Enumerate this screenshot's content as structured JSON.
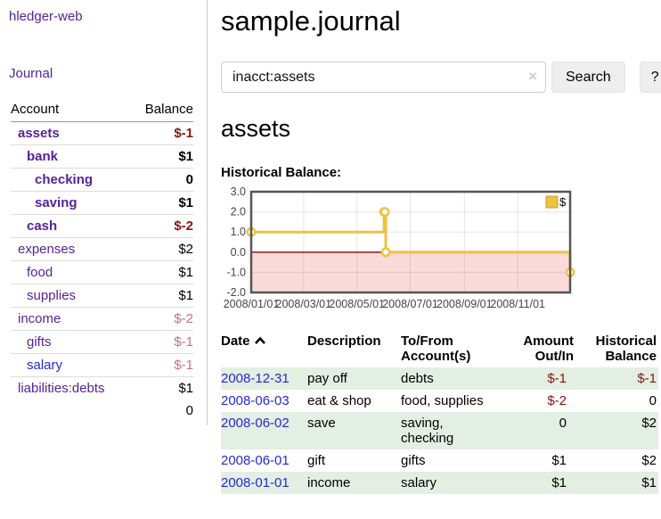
{
  "colors": {
    "link_purple": "#55229b",
    "link_blue": "#2828d4",
    "negative_strong": "#8a1515",
    "negative_soft": "#c4737d",
    "row_stripe_green": "#e2efe2",
    "chart_series_yellow": "#edc240",
    "chart_negative_region": "#fbdada",
    "chart_zero_line": "#8b0000"
  },
  "sidebar": {
    "app_title": "hledger-web",
    "journal_link": "Journal",
    "accounts_table": {
      "account_header": "Account",
      "balance_header": "Balance",
      "rows": [
        {
          "account": "assets",
          "balance": "$-1",
          "level": 1,
          "bold": true,
          "link_color": "purple",
          "balance_color": "neg-strong"
        },
        {
          "account": "bank",
          "balance": "$1",
          "level": 2,
          "bold": true,
          "link_color": "purple",
          "balance_color": "normal"
        },
        {
          "account": "checking",
          "balance": "0",
          "level": 3,
          "bold": true,
          "link_color": "purple",
          "balance_color": "normal"
        },
        {
          "account": "saving",
          "balance": "$1",
          "level": 3,
          "bold": true,
          "link_color": "purple",
          "balance_color": "normal"
        },
        {
          "account": "cash",
          "balance": "$-2",
          "level": 2,
          "bold": true,
          "link_color": "purple",
          "balance_color": "neg-strong"
        },
        {
          "account": "expenses",
          "balance": "$2",
          "level": 1,
          "bold": false,
          "link_color": "purple",
          "balance_color": "normal"
        },
        {
          "account": "food",
          "balance": "$1",
          "level": 2,
          "bold": false,
          "link_color": "purple",
          "balance_color": "normal"
        },
        {
          "account": "supplies",
          "balance": "$1",
          "level": 2,
          "bold": false,
          "link_color": "purple",
          "balance_color": "normal"
        },
        {
          "account": "income",
          "balance": "$-2",
          "level": 1,
          "bold": false,
          "link_color": "purple",
          "balance_color": "neg-soft"
        },
        {
          "account": "gifts",
          "balance": "$-1",
          "level": 2,
          "bold": false,
          "link_color": "purple",
          "balance_color": "neg-soft"
        },
        {
          "account": "salary",
          "balance": "$-1",
          "level": 2,
          "bold": false,
          "link_color": "blue",
          "balance_color": "neg-soft"
        },
        {
          "account": "liabilities:debts",
          "balance": "$1",
          "level": 1,
          "bold": false,
          "link_color": "purple",
          "balance_color": "normal"
        }
      ],
      "total": "0"
    }
  },
  "main": {
    "title": "sample.journal",
    "search": {
      "value": "inacct:assets",
      "clear_icon": "×",
      "search_button": "Search",
      "help_button": "?"
    },
    "account_heading": "assets",
    "chart_label": "Historical Balance:"
  },
  "chart_data": {
    "type": "line",
    "style": "step",
    "title": "Historical Balance",
    "series": [
      {
        "name": "$",
        "points": [
          [
            "2008-01-01",
            1
          ],
          [
            "2008-06-01",
            2
          ],
          [
            "2008-06-02",
            2
          ],
          [
            "2008-06-03",
            0
          ],
          [
            "2008-12-31",
            -1
          ]
        ]
      }
    ],
    "ylim": [
      -2,
      3
    ],
    "yticks": [
      "3.0",
      "2.0",
      "1.0",
      "0.0",
      "-1.0",
      "-2.0"
    ],
    "xticks": [
      "2008/01/01",
      "2008/03/01",
      "2008/05/01",
      "2008/07/01",
      "2008/09/01",
      "2008/11/01"
    ],
    "x_range": [
      "2008-01-01",
      "2008-12-31"
    ],
    "legend": "$",
    "legend_position": "top-right",
    "grid": true,
    "negative_region_shaded": true
  },
  "register": {
    "headers": {
      "date": "Date",
      "description": "Description",
      "accounts": "To/From Account(s)",
      "amount": "Amount Out/In",
      "balance": "Historical Balance"
    },
    "sort": {
      "column": "date",
      "direction": "ascending"
    },
    "rows": [
      {
        "date": "2008-12-31",
        "description": "pay off",
        "accounts": "debts",
        "amount": "$-1",
        "balance": "$-1",
        "amount_color": "neg-strong",
        "balance_color": "neg-strong",
        "stripe": "green"
      },
      {
        "date": "2008-06-03",
        "description": "eat & shop",
        "accounts": "food, supplies",
        "amount": "$-2",
        "balance": "0",
        "amount_color": "neg-strong",
        "balance_color": "normal",
        "stripe": "white"
      },
      {
        "date": "2008-06-02",
        "description": "save",
        "accounts": "saving, checking",
        "amount": "0",
        "balance": "$2",
        "amount_color": "normal",
        "balance_color": "normal",
        "stripe": "green"
      },
      {
        "date": "2008-06-01",
        "description": "gift",
        "accounts": "gifts",
        "amount": "$1",
        "balance": "$2",
        "amount_color": "normal",
        "balance_color": "normal",
        "stripe": "white"
      },
      {
        "date": "2008-01-01",
        "description": "income",
        "accounts": "salary",
        "amount": "$1",
        "balance": "$1",
        "amount_color": "normal",
        "balance_color": "normal",
        "stripe": "green"
      }
    ]
  }
}
